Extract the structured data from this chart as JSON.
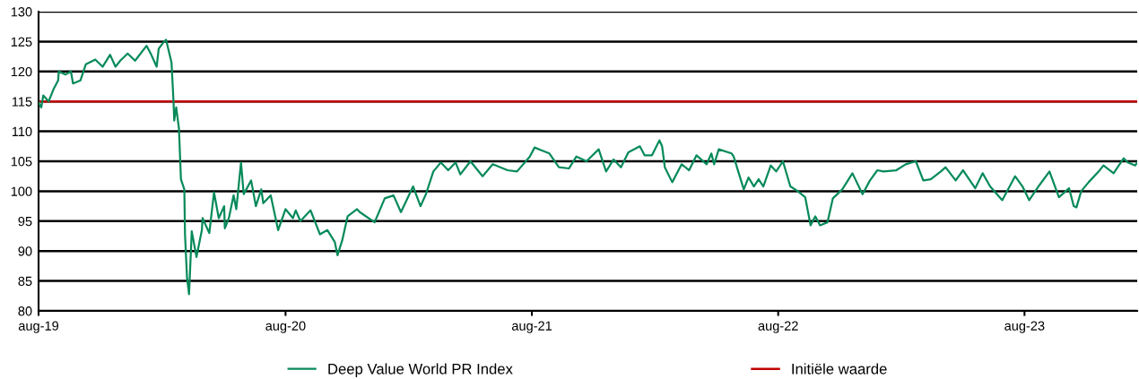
{
  "chart_data": {
    "type": "line",
    "x": [
      "2019-08-01",
      "2019-08-05",
      "2019-08-08",
      "2019-08-16",
      "2019-08-23",
      "2019-08-30",
      "2019-08-31",
      "2019-09-10",
      "2019-09-18",
      "2019-09-21",
      "2019-10-02",
      "2019-10-10",
      "2019-10-24",
      "2019-11-04",
      "2019-11-15",
      "2019-11-23",
      "2019-11-30",
      "2019-12-11",
      "2019-12-22",
      "2020-01-08",
      "2020-01-15",
      "2020-01-23",
      "2020-01-26",
      "2020-02-03",
      "2020-02-06",
      "2020-02-14",
      "2020-02-17",
      "2020-02-18",
      "2020-02-21",
      "2020-02-25",
      "2020-02-28",
      "2020-03-04",
      "2020-03-05",
      "2020-03-08",
      "2020-03-11",
      "2020-03-15",
      "2020-03-22",
      "2020-03-30",
      "2020-03-31",
      "2020-04-10",
      "2020-04-17",
      "2020-04-24",
      "2020-05-02",
      "2020-05-03",
      "2020-05-09",
      "2020-05-16",
      "2020-05-20",
      "2020-05-27",
      "2020-05-31",
      "2020-06-11",
      "2020-06-18",
      "2020-06-26",
      "2020-06-29",
      "2020-07-10",
      "2020-07-21",
      "2020-08-01",
      "2020-08-12",
      "2020-08-16",
      "2020-08-23",
      "2020-09-07",
      "2020-09-21",
      "2020-10-02",
      "2020-10-13",
      "2020-10-17",
      "2020-10-24",
      "2020-11-01",
      "2020-11-15",
      "2020-11-19",
      "2020-12-11",
      "2020-12-26",
      "2021-01-08",
      "2021-01-19",
      "2021-02-06",
      "2021-02-17",
      "2021-02-25",
      "2021-03-08",
      "2021-03-19",
      "2021-03-30",
      "2021-04-10",
      "2021-04-17",
      "2021-05-02",
      "2021-05-20",
      "2021-06-04",
      "2021-06-26",
      "2021-07-10",
      "2021-07-29",
      "2021-08-05",
      "2021-08-16",
      "2021-08-27",
      "2021-09-10",
      "2021-09-25",
      "2021-10-06",
      "2021-10-21",
      "2021-11-08",
      "2021-11-19",
      "2021-11-30",
      "2021-12-11",
      "2021-12-22",
      "2022-01-08",
      "2022-01-15",
      "2022-01-26",
      "2022-02-06",
      "2022-02-10",
      "2022-02-14",
      "2022-02-25",
      "2022-03-11",
      "2022-03-22",
      "2022-04-02",
      "2022-04-17",
      "2022-04-24",
      "2022-04-28",
      "2022-05-05",
      "2022-05-24",
      "2022-05-27",
      "2022-06-11",
      "2022-06-18",
      "2022-06-26",
      "2022-07-03",
      "2022-07-10",
      "2022-07-21",
      "2022-07-29",
      "2022-08-08",
      "2022-08-19",
      "2022-08-30",
      "2022-09-10",
      "2022-09-18",
      "2022-09-25",
      "2022-10-02",
      "2022-10-13",
      "2022-10-21",
      "2022-11-04",
      "2022-11-19",
      "2022-12-04",
      "2022-12-15",
      "2022-12-26",
      "2023-01-04",
      "2023-01-23",
      "2023-02-06",
      "2023-02-21",
      "2023-03-04",
      "2023-03-15",
      "2023-03-30",
      "2023-04-06",
      "2023-04-21",
      "2023-05-02",
      "2023-05-20",
      "2023-05-31",
      "2023-06-11",
      "2023-06-29",
      "2023-07-18",
      "2023-07-29",
      "2023-08-08",
      "2023-08-23",
      "2023-09-07",
      "2023-09-21",
      "2023-10-06",
      "2023-10-13",
      "2023-10-17",
      "2023-10-24",
      "2023-11-04",
      "2023-11-19",
      "2023-11-26",
      "2023-12-11",
      "2023-12-26",
      "2024-01-01",
      "2024-01-12",
      "2024-01-15"
    ],
    "series": [
      {
        "name": "Deep Value World PR Index",
        "color": "#078a5a",
        "values": [
          114.8,
          114,
          116,
          115,
          117,
          118.5,
          120,
          119.5,
          120,
          118,
          118.5,
          121.2,
          122,
          120.8,
          122.8,
          120.8,
          121.8,
          123,
          121.8,
          124.3,
          122.8,
          120.8,
          123.8,
          125,
          125.3,
          121.5,
          115,
          111.8,
          114,
          110.5,
          102,
          100.3,
          92.8,
          85.5,
          82.8,
          93.3,
          89,
          93.5,
          95.5,
          93,
          99.8,
          95.5,
          97.5,
          93.8,
          95.5,
          99.3,
          97,
          104.8,
          99.5,
          101.8,
          97.5,
          100.3,
          98,
          99.3,
          93.5,
          97,
          95.5,
          96.8,
          95,
          96.8,
          92.8,
          93.5,
          91.5,
          89.3,
          91.8,
          95.8,
          97,
          96.5,
          94.8,
          98.8,
          99.3,
          96.5,
          100.8,
          97.5,
          99.5,
          103.3,
          104.8,
          103.5,
          104.8,
          102.8,
          105,
          102.5,
          104.5,
          103.5,
          103.3,
          105.8,
          107.3,
          106.8,
          106.3,
          104,
          103.8,
          105.8,
          105,
          107,
          103.3,
          105.3,
          104,
          106.5,
          107.5,
          106,
          106,
          108.5,
          107.5,
          104,
          101.5,
          104.5,
          103.5,
          106,
          104.5,
          106.3,
          104.5,
          107,
          106.3,
          105.8,
          100.3,
          102.3,
          100.8,
          102,
          100.8,
          104.3,
          103.3,
          105,
          100.8,
          100,
          99,
          94.3,
          95.8,
          94.3,
          94.8,
          98.8,
          100.3,
          103,
          99.5,
          101.8,
          103.5,
          103.3,
          103.5,
          104.5,
          105,
          101.8,
          102,
          103.3,
          104,
          101.8,
          103.5,
          100.5,
          103,
          100.8,
          98.5,
          102.5,
          100.8,
          98.5,
          101,
          103.3,
          99,
          100.5,
          97.5,
          97.3,
          100,
          101.5,
          103.3,
          104.3,
          103,
          105.5,
          104.8,
          104.3,
          104.8
        ]
      }
    ],
    "ref_lines": [
      {
        "axis": "y",
        "value": 115,
        "label": "Initiële waarde",
        "color": "#c00000"
      }
    ],
    "xlim": [
      "2019-08-01",
      "2024-01-15"
    ],
    "xticks": [
      {
        "value": "2019-08-01",
        "label": "aug-19"
      },
      {
        "value": "2020-08-01",
        "label": "aug-20"
      },
      {
        "value": "2021-08-01",
        "label": "aug-21"
      },
      {
        "value": "2022-08-01",
        "label": "aug-22"
      },
      {
        "value": "2023-08-01",
        "label": "aug-23"
      }
    ],
    "ylim": [
      80,
      130
    ],
    "yticks": [
      80,
      85,
      90,
      95,
      100,
      105,
      110,
      115,
      120,
      125,
      130
    ],
    "grid": "y",
    "legend": "bottom",
    "marker": "none",
    "line_style": "solid"
  }
}
